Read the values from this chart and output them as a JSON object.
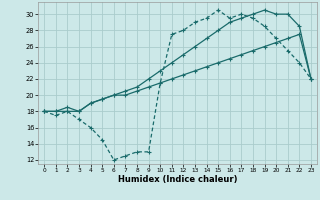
{
  "xlabel": "Humidex (Indice chaleur)",
  "bg_color": "#cce8e8",
  "grid_color": "#aacccc",
  "line_color": "#1a6b6b",
  "xlim": [
    -0.5,
    23.5
  ],
  "ylim": [
    11.5,
    31.5
  ],
  "xticks": [
    0,
    1,
    2,
    3,
    4,
    5,
    6,
    7,
    8,
    9,
    10,
    11,
    12,
    13,
    14,
    15,
    16,
    17,
    18,
    19,
    20,
    21,
    22,
    23
  ],
  "yticks": [
    12,
    14,
    16,
    18,
    20,
    22,
    24,
    26,
    28,
    30
  ],
  "line1_x": [
    0,
    1,
    2,
    3,
    4,
    5,
    6,
    7,
    8,
    9,
    10,
    11,
    12,
    13,
    14,
    15,
    16,
    17,
    18,
    19,
    20,
    21,
    22,
    23
  ],
  "line1_y": [
    18,
    18,
    18,
    18,
    19,
    19.5,
    20,
    20.5,
    21,
    22,
    23,
    24,
    25,
    26,
    27,
    28,
    29,
    29.5,
    30,
    30.5,
    30,
    30,
    28.5,
    22
  ],
  "line2_x": [
    0,
    1,
    2,
    3,
    4,
    5,
    6,
    7,
    8,
    9,
    10,
    11,
    12,
    13,
    14,
    15,
    16,
    17,
    18,
    19,
    20,
    21,
    22,
    23
  ],
  "line2_y": [
    18,
    17.5,
    18,
    17,
    16,
    14.5,
    12,
    12.5,
    13,
    13,
    21.5,
    27.5,
    28,
    29,
    29.5,
    30.5,
    29.5,
    30,
    29.5,
    28.5,
    27,
    25.5,
    24,
    22
  ],
  "line3_x": [
    0,
    1,
    2,
    3,
    4,
    5,
    6,
    7,
    8,
    9,
    10,
    11,
    12,
    13,
    14,
    15,
    16,
    17,
    18,
    19,
    20,
    21,
    22,
    23
  ],
  "line3_y": [
    18,
    18,
    18.5,
    18,
    19,
    19.5,
    20,
    20,
    20.5,
    21,
    21.5,
    22,
    22.5,
    23,
    23.5,
    24,
    24.5,
    25,
    25.5,
    26,
    26.5,
    27,
    27.5,
    22
  ]
}
